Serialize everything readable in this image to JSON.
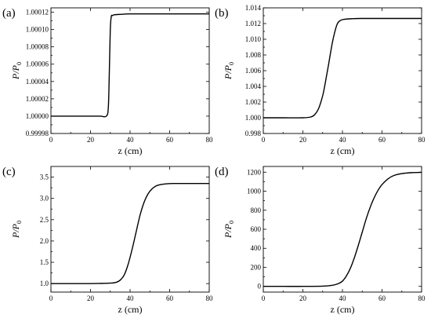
{
  "chart_data": [
    {
      "type": "line",
      "panel_label": "(a)",
      "xlabel": "z (cm)",
      "ylabel": "P/P0",
      "ylabel_main": "P/P",
      "ylabel_sub": "0",
      "xlim": [
        0,
        80
      ],
      "ylim": [
        0.99998,
        1.000125
      ],
      "xticks": [
        0,
        20,
        40,
        60,
        80
      ],
      "xticklabels": [
        "0",
        "20",
        "40",
        "60",
        "80"
      ],
      "yticks": [
        0.99998,
        1.0,
        1.00002,
        1.00004,
        1.00006,
        1.00008,
        1.0001,
        1.00012
      ],
      "yticklabels": [
        "0.99998",
        "1.00000",
        "1.00002",
        "1.00004",
        "1.00006",
        "1.00008",
        "1.00010",
        "1.00012"
      ],
      "x": [
        0,
        5,
        10,
        15,
        20,
        25,
        28,
        29,
        29.5,
        30,
        30.5,
        31,
        32,
        35,
        40,
        50,
        60,
        70,
        80
      ],
      "y": [
        1.0,
        1.0,
        1.0,
        1.0,
        1.0,
        1.0,
        1.0,
        1.00001,
        1.00005,
        1.0001,
        1.000115,
        1.000116,
        1.000117,
        1.0001175,
        1.000118,
        1.000118,
        1.000118,
        1.000118,
        1.000118
      ]
    },
    {
      "type": "line",
      "panel_label": "(b)",
      "xlabel": "z (cm)",
      "ylabel": "P/P0",
      "ylabel_main": "P/P",
      "ylabel_sub": "0",
      "xlim": [
        0,
        80
      ],
      "ylim": [
        0.998,
        1.014
      ],
      "xticks": [
        0,
        20,
        40,
        60,
        80
      ],
      "xticklabels": [
        "0",
        "20",
        "40",
        "60",
        "80"
      ],
      "yticks": [
        0.998,
        1.0,
        1.002,
        1.004,
        1.006,
        1.008,
        1.01,
        1.012,
        1.014
      ],
      "yticklabels": [
        "0.998",
        "1.000",
        "1.002",
        "1.004",
        "1.006",
        "1.008",
        "1.010",
        "1.012",
        "1.014"
      ],
      "x": [
        0,
        10,
        20,
        24,
        26,
        28,
        30,
        31,
        32,
        33,
        34,
        35,
        36,
        37,
        38,
        40,
        45,
        50,
        60,
        70,
        80
      ],
      "y": [
        1.0,
        1.0,
        1.0,
        1.0001,
        1.0004,
        1.0012,
        1.0028,
        1.004,
        1.0054,
        1.0068,
        1.0083,
        1.0097,
        1.0108,
        1.0117,
        1.0122,
        1.0125,
        1.01262,
        1.01265,
        1.01265,
        1.01265,
        1.01265
      ]
    },
    {
      "type": "line",
      "panel_label": "(c)",
      "xlabel": "z (cm)",
      "ylabel": "P/P0",
      "ylabel_main": "P/P",
      "ylabel_sub": "0",
      "xlim": [
        0,
        80
      ],
      "ylim": [
        0.8,
        3.75
      ],
      "xticks": [
        0,
        20,
        40,
        60,
        80
      ],
      "xticklabels": [
        "0",
        "20",
        "40",
        "60",
        "80"
      ],
      "yticks": [
        1.0,
        1.5,
        2.0,
        2.5,
        3.0,
        3.5
      ],
      "yticklabels": [
        "1.0",
        "1.5",
        "2.0",
        "2.5",
        "3.0",
        "3.5"
      ],
      "x": [
        0,
        10,
        20,
        30,
        33,
        35,
        37,
        39,
        41,
        43,
        45,
        47,
        49,
        51,
        53,
        55,
        58,
        62,
        70,
        80
      ],
      "y": [
        1.0,
        1.0,
        1.0,
        1.01,
        1.03,
        1.08,
        1.2,
        1.45,
        1.8,
        2.2,
        2.6,
        2.9,
        3.1,
        3.22,
        3.29,
        3.32,
        3.34,
        3.35,
        3.35,
        3.35
      ]
    },
    {
      "type": "line",
      "panel_label": "(d)",
      "xlabel": "z (cm)",
      "ylabel": "P/P0",
      "ylabel_main": "P/P",
      "ylabel_sub": "0",
      "xlim": [
        0,
        80
      ],
      "ylim": [
        -60,
        1260
      ],
      "xticks": [
        0,
        20,
        40,
        60,
        80
      ],
      "xticklabels": [
        "0",
        "20",
        "40",
        "60",
        "80"
      ],
      "yticks": [
        0,
        200,
        400,
        600,
        800,
        1000,
        1200
      ],
      "yticklabels": [
        "0",
        "200",
        "400",
        "600",
        "800",
        "1000",
        "1200"
      ],
      "x": [
        0,
        10,
        20,
        30,
        35,
        38,
        40,
        42,
        44,
        46,
        48,
        50,
        52,
        54,
        56,
        58,
        60,
        63,
        66,
        70,
        75,
        80
      ],
      "y": [
        0,
        0,
        0,
        2,
        12,
        30,
        55,
        110,
        190,
        300,
        430,
        570,
        710,
        830,
        930,
        1010,
        1070,
        1130,
        1165,
        1185,
        1195,
        1198
      ]
    }
  ]
}
